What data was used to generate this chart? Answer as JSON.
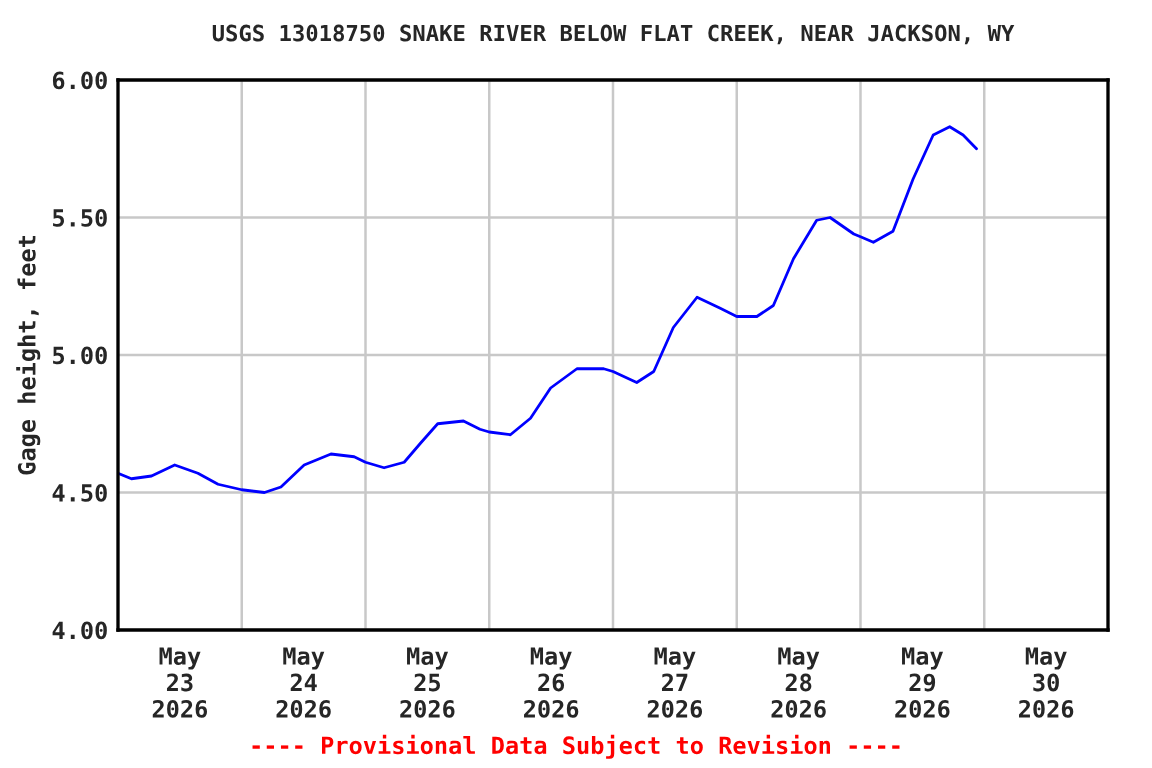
{
  "chart_data": {
    "type": "line",
    "title": "USGS 13018750 SNAKE RIVER BELOW FLAT CREEK, NEAR JACKSON, WY",
    "ylabel": "Gage height, feet",
    "annotations": [
      "---- Provisional Data Subject to Revision ----"
    ],
    "x": [
      "2026-05-23T00:00",
      "2026-05-23T02:36",
      "2026-05-23T06:30",
      "2026-05-23T11:00",
      "2026-05-23T15:30",
      "2026-05-23T19:24",
      "2026-05-24T00:00",
      "2026-05-24T04:24",
      "2026-05-24T07:36",
      "2026-05-24T12:06",
      "2026-05-24T17:18",
      "2026-05-24T21:48",
      "2026-05-25T00:00",
      "2026-05-25T03:36",
      "2026-05-25T07:30",
      "2026-05-25T10:42",
      "2026-05-25T14:00",
      "2026-05-25T19:00",
      "2026-05-25T22:12",
      "2026-05-26T00:00",
      "2026-05-26T04:06",
      "2026-05-26T08:00",
      "2026-05-26T11:54",
      "2026-05-26T17:00",
      "2026-05-26T22:12",
      "2026-05-27T00:00",
      "2026-05-27T04:36",
      "2026-05-27T07:54",
      "2026-05-27T11:42",
      "2026-05-27T16:18",
      "2026-05-27T20:48",
      "2026-05-28T00:00",
      "2026-05-28T03:54",
      "2026-05-28T07:06",
      "2026-05-28T11:00",
      "2026-05-28T15:30",
      "2026-05-28T18:06",
      "2026-05-28T22:42",
      "2026-05-29T00:00",
      "2026-05-29T02:30",
      "2026-05-29T06:18",
      "2026-05-29T10:12",
      "2026-05-29T14:06",
      "2026-05-29T17:18",
      "2026-05-29T19:54",
      "2026-05-29T22:30"
    ],
    "series": [
      {
        "color": "#0000ff",
        "values": [
          4.57,
          4.55,
          4.56,
          4.6,
          4.57,
          4.53,
          4.51,
          4.5,
          4.52,
          4.6,
          4.64,
          4.63,
          4.61,
          4.59,
          4.61,
          4.68,
          4.75,
          4.76,
          4.73,
          4.72,
          4.71,
          4.77,
          4.88,
          4.95,
          4.95,
          4.94,
          4.9,
          4.94,
          5.1,
          5.21,
          5.17,
          5.14,
          5.14,
          5.18,
          5.35,
          5.49,
          5.5,
          5.44,
          5.43,
          5.41,
          5.45,
          5.64,
          5.8,
          5.83,
          5.8,
          5.75
        ]
      }
    ],
    "xlim": [
      "2026-05-23",
      "2026-05-31"
    ],
    "xticks": [
      {
        "value": "2026-05-23T12:00",
        "label": "May\n23\n2026"
      },
      {
        "value": "2026-05-24T12:00",
        "label": "May\n24\n2026"
      },
      {
        "value": "2026-05-25T12:00",
        "label": "May\n25\n2026"
      },
      {
        "value": "2026-05-26T12:00",
        "label": "May\n26\n2026"
      },
      {
        "value": "2026-05-27T12:00",
        "label": "May\n27\n2026"
      },
      {
        "value": "2026-05-28T12:00",
        "label": "May\n28\n2026"
      },
      {
        "value": "2026-05-29T12:00",
        "label": "May\n29\n2026"
      },
      {
        "value": "2026-05-30T12:00",
        "label": "May\n30\n2026"
      },
      {
        "value": "2026-05-24",
        "label": null
      },
      {
        "value": "2026-05-25",
        "label": null
      },
      {
        "value": "2026-05-26",
        "label": null
      },
      {
        "value": "2026-05-27",
        "label": null
      },
      {
        "value": "2026-05-28",
        "label": null
      },
      {
        "value": "2026-05-29",
        "label": null
      },
      {
        "value": "2026-05-30",
        "label": null
      }
    ],
    "ylim": [
      4.0,
      6.0
    ],
    "yticks": [
      {
        "value": 4.0,
        "label": "4.00"
      },
      {
        "value": 4.5,
        "label": "4.50"
      },
      {
        "value": 5.0,
        "label": "5.00"
      },
      {
        "value": 5.5,
        "label": "5.50"
      },
      {
        "value": 6.0,
        "label": "6.00"
      }
    ],
    "grid": true,
    "marker": "none",
    "line_style": "solid"
  }
}
